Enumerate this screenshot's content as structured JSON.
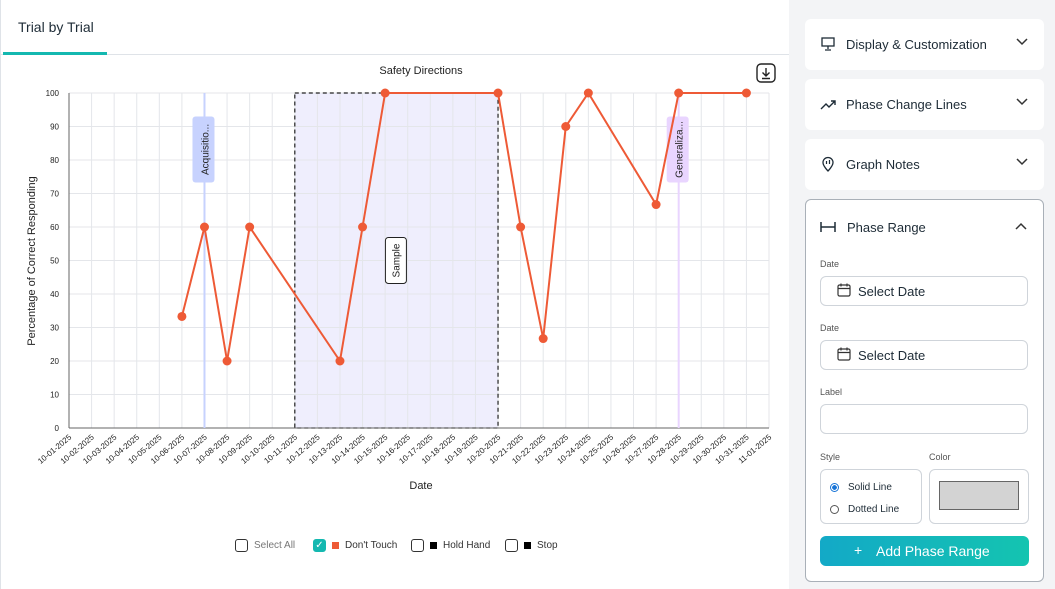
{
  "tabs": [
    {
      "label": "Trial by Trial"
    }
  ],
  "download_icon": "download-icon",
  "chart_data": {
    "type": "line",
    "title": "Safety Directions",
    "xlabel": "Date",
    "ylabel": "Percentage of Correct Responding",
    "ylim": [
      0,
      100
    ],
    "yticks": [
      0,
      10,
      20,
      30,
      40,
      50,
      60,
      70,
      80,
      90,
      100
    ],
    "grid": true,
    "categories": [
      "10-01-2025",
      "10-02-2025",
      "10-03-2025",
      "10-04-2025",
      "10-05-2025",
      "10-06-2025",
      "10-07-2025",
      "10-08-2025",
      "10-09-2025",
      "10-10-2025",
      "10-11-2025",
      "10-12-2025",
      "10-13-2025",
      "10-14-2025",
      "10-15-2025",
      "10-16-2025",
      "10-17-2025",
      "10-18-2025",
      "10-19-2025",
      "10-20-2025",
      "10-21-2025",
      "10-22-2025",
      "10-23-2025",
      "10-24-2025",
      "10-25-2025",
      "10-26-2025",
      "10-27-2025",
      "10-28-2025",
      "10-29-2025",
      "10-30-2025",
      "10-31-2025",
      "11-01-2025"
    ],
    "series": [
      {
        "name": "Don't Touch",
        "color": "#ee5a36",
        "points": [
          {
            "x": "10-06-2025",
            "y": 33.3
          },
          {
            "x": "10-07-2025",
            "y": 60
          },
          {
            "x": "10-08-2025",
            "y": 20
          },
          {
            "x": "10-09-2025",
            "y": 60
          },
          {
            "x": "10-13-2025",
            "y": 20
          },
          {
            "x": "10-14-2025",
            "y": 60
          },
          {
            "x": "10-15-2025",
            "y": 100
          },
          {
            "x": "10-20-2025",
            "y": 100
          },
          {
            "x": "10-21-2025",
            "y": 60
          },
          {
            "x": "10-22-2025",
            "y": 26.7
          },
          {
            "x": "10-23-2025",
            "y": 90
          },
          {
            "x": "10-24-2025",
            "y": 100
          },
          {
            "x": "10-27-2025",
            "y": 66.7
          },
          {
            "x": "10-28-2025",
            "y": 100
          },
          {
            "x": "10-31-2025",
            "y": 100
          }
        ]
      }
    ],
    "phase_lines": [
      {
        "label": "Acquisitio...",
        "x": "10-07-2025",
        "color": "#c7d2fe"
      },
      {
        "label": "Generaliza...",
        "x": "10-28-2025",
        "color": "#e9d5ff"
      }
    ],
    "phase_ranges": [
      {
        "label": "Sample",
        "start": "10-11-2025",
        "end": "10-20-2025",
        "fill": "#efeefd",
        "style": "dotted"
      }
    ],
    "legend": {
      "placement": "bottom",
      "items": [
        {
          "label": "Select All",
          "checked": false,
          "swatch": ""
        },
        {
          "label": "Don't Touch",
          "checked": true,
          "swatch": "#ee5a36"
        },
        {
          "label": "Hold Hand",
          "checked": false,
          "swatch": "#000000"
        },
        {
          "label": "Stop",
          "checked": false,
          "swatch": "#000000"
        }
      ]
    }
  },
  "sidebar": {
    "display": {
      "label": "Display & Customization",
      "icon": "presentation-icon"
    },
    "phase_lines": {
      "label": "Phase Change Lines",
      "icon": "trend-icon"
    },
    "notes": {
      "label": "Graph Notes",
      "icon": "note-pin-icon"
    },
    "phase_range": {
      "label": "Phase Range",
      "start_date": {
        "label": "Date",
        "value": "Select Date"
      },
      "end_date": {
        "label": "Date",
        "value": "Select Date"
      },
      "label_field": {
        "label": "Label",
        "value": ""
      },
      "style": {
        "label": "Style",
        "options": [
          "Solid Line",
          "Dotted Line"
        ],
        "selected": "Solid Line"
      },
      "color": {
        "label": "Color",
        "value": "#d3d3d3"
      },
      "add_button": "Add Phase Range"
    }
  }
}
